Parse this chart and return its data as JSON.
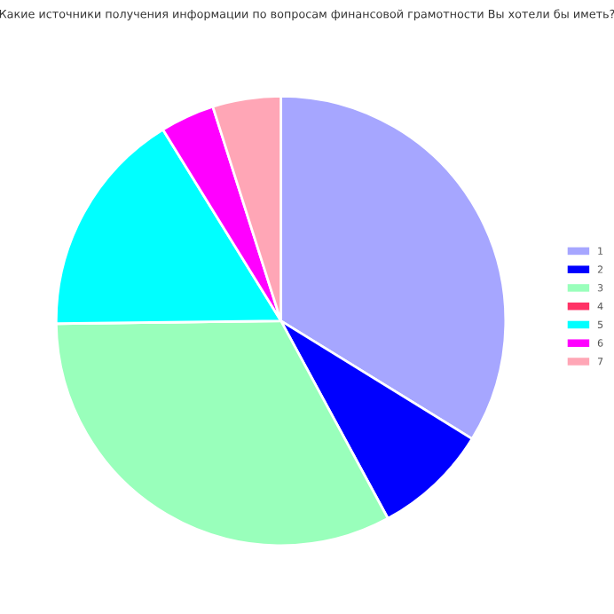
{
  "chart_data": {
    "type": "pie",
    "title": "Какие источники получения информации по вопросам финансовой грамотности Вы хотели бы иметь?",
    "categories": [
      "1",
      "2",
      "3",
      "4",
      "5",
      "6",
      "7"
    ],
    "values": [
      33.8,
      8.3,
      32.7,
      0,
      16.4,
      3.9,
      4.9
    ],
    "colors": [
      "#a6a6ff",
      "#0000ff",
      "#99ffbb",
      "#ff3366",
      "#00ffff",
      "#ff00ff",
      "#ffa6b6"
    ],
    "legend": "right"
  }
}
